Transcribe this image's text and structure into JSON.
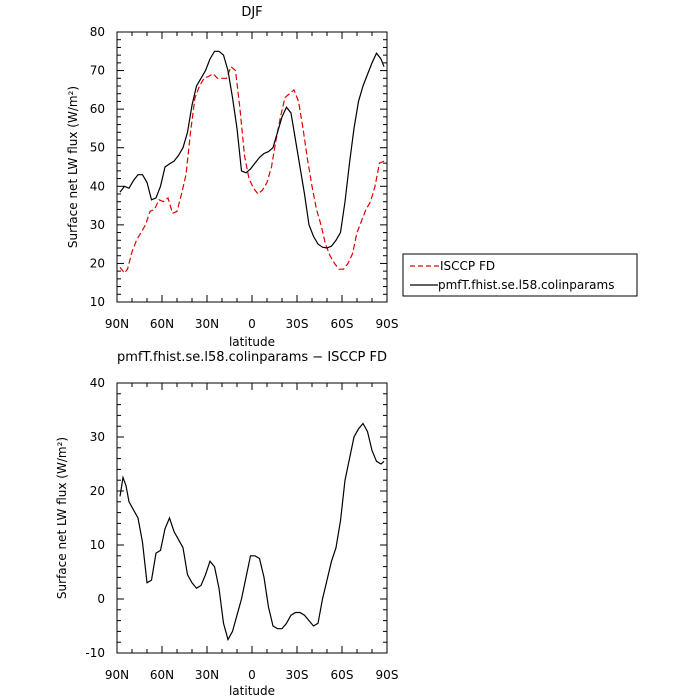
{
  "chart_data": [
    {
      "type": "line",
      "title": "DJF",
      "xlabel": "latitude",
      "ylabel": "Surface net LW flux (W/m²)",
      "ylim": [
        10,
        80
      ],
      "xlim": [
        90,
        -90
      ],
      "x_ticks": [
        "90N",
        "60N",
        "30N",
        "0",
        "30S",
        "60S",
        "90S"
      ],
      "y_ticks": [
        "10",
        "20",
        "30",
        "40",
        "50",
        "60",
        "70",
        "80"
      ],
      "legend_position": "right",
      "series": [
        {
          "name": "ISCCP FD",
          "color": "#e00000",
          "dashed": true,
          "x": [
            88,
            85,
            83,
            80,
            77,
            74,
            71,
            68,
            65,
            62,
            59,
            56,
            53,
            50,
            47,
            44,
            41,
            38,
            35,
            32,
            29,
            26,
            23,
            20,
            17,
            14,
            11,
            8,
            5,
            2,
            -1,
            -4,
            -7,
            -10,
            -13,
            -16,
            -19,
            -22,
            -25,
            -28,
            -31,
            -34,
            -37,
            -40,
            -43,
            -46,
            -49,
            -52,
            -55,
            -58,
            -61,
            -64,
            -67,
            -70,
            -73,
            -76,
            -79,
            -82,
            -85,
            -88
          ],
          "y": [
            19,
            17.5,
            18.5,
            23,
            26,
            28,
            30,
            33.5,
            34,
            36.5,
            36,
            37,
            33,
            33.5,
            38,
            43,
            54,
            63,
            66,
            68,
            68.5,
            69.2,
            68,
            68,
            68,
            71,
            70,
            60,
            48,
            42,
            39.5,
            38,
            39,
            41,
            45,
            52,
            58,
            63,
            64,
            65,
            62,
            55,
            47,
            40,
            34,
            30,
            25,
            22,
            20,
            18.5,
            18.5,
            20,
            22.5,
            28,
            31,
            34,
            36,
            40,
            46,
            46.5
          ]
        },
        {
          "name": "pmfT.fhist.se.l58.colinparams",
          "color": "#000000",
          "dashed": false,
          "x": [
            88,
            85,
            82,
            79,
            76,
            73,
            70,
            67,
            64,
            61,
            58,
            55,
            52,
            49,
            46,
            43,
            40,
            37,
            34,
            31,
            28,
            25,
            22,
            19,
            16,
            13,
            10,
            7,
            4,
            1,
            -2,
            -5,
            -8,
            -11,
            -14,
            -17,
            -20,
            -23,
            -26,
            -29,
            -32,
            -35,
            -38,
            -41,
            -44,
            -47,
            -50,
            -53,
            -56,
            -59,
            -62,
            -65,
            -68,
            -71,
            -74,
            -77,
            -80,
            -83,
            -86,
            -88
          ],
          "y": [
            38.5,
            40,
            39.5,
            41.5,
            43,
            43,
            41,
            36.5,
            37,
            40,
            45,
            45.8,
            46.5,
            48,
            50,
            54,
            61,
            66,
            68,
            70,
            73,
            75,
            75,
            74,
            70,
            63,
            55,
            44,
            43.5,
            44.5,
            46,
            47.5,
            48.5,
            49,
            50,
            54,
            58,
            60.5,
            59,
            52,
            45,
            38,
            30,
            27,
            25,
            24.2,
            24,
            24.5,
            26,
            28,
            36,
            46,
            55,
            62,
            66,
            69,
            72,
            74.5,
            73,
            71
          ]
        }
      ]
    },
    {
      "type": "line",
      "title": "pmfT.fhist.se.l58.colinparams − ISCCP FD",
      "xlabel": "latitude",
      "ylabel": "Surface net LW flux (W/m²)",
      "ylim": [
        -10,
        40
      ],
      "xlim": [
        90,
        -90
      ],
      "x_ticks": [
        "90N",
        "60N",
        "30N",
        "0",
        "30S",
        "60S",
        "90S"
      ],
      "y_ticks": [
        "-10",
        "0",
        "10",
        "20",
        "30",
        "40"
      ],
      "series": [
        {
          "color": "#000000",
          "dashed": false,
          "x": [
            88,
            86,
            84,
            82,
            79,
            76,
            73,
            70,
            67,
            64,
            61,
            58,
            55,
            52,
            49,
            46,
            43,
            40,
            37,
            34,
            31,
            28,
            25,
            22,
            19,
            16,
            13,
            10,
            7,
            4,
            1,
            -2,
            -5,
            -8,
            -11,
            -14,
            -17,
            -20,
            -23,
            -26,
            -29,
            -32,
            -35,
            -38,
            -41,
            -44,
            -47,
            -50,
            -53,
            -56,
            -59,
            -62,
            -65,
            -68,
            -71,
            -74,
            -77,
            -80,
            -83,
            -86,
            -88
          ],
          "y": [
            19,
            22.5,
            21,
            18,
            16.5,
            15,
            10.5,
            3,
            3.5,
            8.5,
            9,
            13,
            15,
            12.5,
            11,
            9.5,
            4.5,
            3,
            2,
            2.5,
            4.5,
            7,
            6,
            2,
            -4.5,
            -7.5,
            -6,
            -3,
            0,
            4,
            8,
            8,
            7.5,
            4,
            -1.5,
            -5,
            -5.5,
            -5.5,
            -4.5,
            -3,
            -2.5,
            -2.5,
            -3,
            -4,
            -5,
            -4.5,
            0,
            3.5,
            7,
            9.5,
            14.5,
            22,
            26,
            30,
            31.5,
            32.5,
            31,
            27.5,
            25.5,
            25,
            25.5
          ]
        }
      ]
    }
  ]
}
